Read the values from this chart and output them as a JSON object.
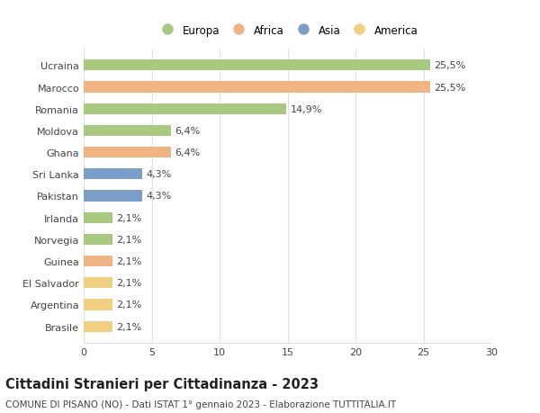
{
  "countries": [
    "Ucraina",
    "Marocco",
    "Romania",
    "Moldova",
    "Ghana",
    "Sri Lanka",
    "Pakistan",
    "Irlanda",
    "Norvegia",
    "Guinea",
    "El Salvador",
    "Argentina",
    "Brasile"
  ],
  "values": [
    25.5,
    25.5,
    14.9,
    6.4,
    6.4,
    4.3,
    4.3,
    2.1,
    2.1,
    2.1,
    2.1,
    2.1,
    2.1
  ],
  "labels": [
    "25,5%",
    "25,5%",
    "14,9%",
    "6,4%",
    "6,4%",
    "4,3%",
    "4,3%",
    "2,1%",
    "2,1%",
    "2,1%",
    "2,1%",
    "2,1%",
    "2,1%"
  ],
  "regions": [
    "Europa",
    "Africa",
    "Europa",
    "Europa",
    "Africa",
    "Asia",
    "Asia",
    "Europa",
    "Europa",
    "Africa",
    "America",
    "America",
    "America"
  ],
  "colors": {
    "Europa": "#a8c97f",
    "Africa": "#f0b482",
    "Asia": "#7b9ec9",
    "America": "#f0d080"
  },
  "legend_order": [
    "Europa",
    "Africa",
    "Asia",
    "America"
  ],
  "xlim": [
    0,
    30
  ],
  "xticks": [
    0,
    5,
    10,
    15,
    20,
    25,
    30
  ],
  "title": "Cittadini Stranieri per Cittadinanza - 2023",
  "subtitle": "COMUNE DI PISANO (NO) - Dati ISTAT 1° gennaio 2023 - Elaborazione TUTTITALIA.IT",
  "title_fontsize": 10.5,
  "subtitle_fontsize": 7.5,
  "label_fontsize": 8,
  "tick_fontsize": 8,
  "legend_fontsize": 8.5,
  "bar_height": 0.5,
  "background_color": "#ffffff",
  "grid_color": "#e0e0e0",
  "text_color": "#444444"
}
